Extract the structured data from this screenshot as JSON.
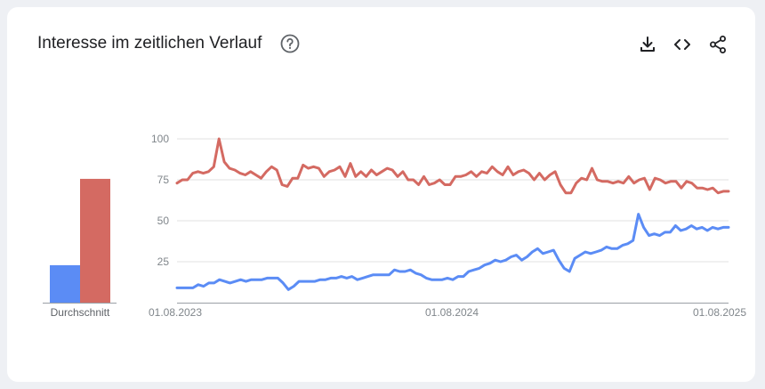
{
  "header": {
    "title": "Interesse im zeitlichen Verlauf",
    "help_icon": "help-circle-icon",
    "actions": [
      {
        "name": "download-icon"
      },
      {
        "name": "embed-code-icon"
      },
      {
        "name": "share-icon"
      }
    ]
  },
  "chart_data": [
    {
      "type": "bar",
      "categories": [
        "Durchschnitt"
      ],
      "series": [
        {
          "values": [
            23
          ],
          "color": "#5b8cf5"
        },
        {
          "values": [
            76
          ],
          "color": "#d46a62"
        }
      ],
      "ylim": [
        0,
        100
      ],
      "xlabel": "Durchschnitt"
    },
    {
      "type": "line",
      "ylim": [
        0,
        100
      ],
      "yticks": [
        25,
        50,
        75,
        100
      ],
      "grid": true,
      "xtick_labels": [
        "01.08.2023",
        "01.08.2024",
        "01.08.2025"
      ],
      "x_start": "2023-08-01",
      "x_end": "2025-08-01",
      "series": [
        {
          "color": "#d46a62",
          "values": [
            73,
            75,
            75,
            79,
            80,
            79,
            80,
            83,
            100,
            86,
            82,
            81,
            79,
            78,
            80,
            78,
            76,
            80,
            83,
            81,
            72,
            71,
            76,
            76,
            84,
            82,
            83,
            82,
            77,
            80,
            81,
            83,
            77,
            85,
            77,
            80,
            77,
            81,
            78,
            80,
            82,
            81,
            77,
            80,
            75,
            75,
            72,
            77,
            72,
            73,
            75,
            72,
            72,
            77,
            77,
            78,
            80,
            77,
            80,
            79,
            83,
            80,
            78,
            83,
            78,
            80,
            81,
            79,
            75,
            79,
            75,
            78,
            80,
            72,
            67,
            67,
            73,
            76,
            75,
            82,
            75,
            74,
            74,
            73,
            74,
            73,
            77,
            73,
            75,
            76,
            69,
            76,
            75,
            73,
            74,
            74,
            70,
            74,
            73,
            70,
            70,
            69,
            70,
            67,
            68,
            68
          ]
        },
        {
          "color": "#5b8cf5",
          "values": [
            9,
            9,
            9,
            9,
            11,
            10,
            12,
            12,
            14,
            13,
            12,
            13,
            14,
            13,
            14,
            14,
            14,
            15,
            15,
            15,
            12,
            8,
            10,
            13,
            13,
            13,
            13,
            14,
            14,
            15,
            15,
            16,
            15,
            16,
            14,
            15,
            16,
            17,
            17,
            17,
            17,
            20,
            19,
            19,
            20,
            18,
            17,
            15,
            14,
            14,
            14,
            15,
            14,
            16,
            16,
            19,
            20,
            21,
            23,
            24,
            26,
            25,
            26,
            28,
            29,
            26,
            28,
            31,
            33,
            30,
            31,
            32,
            26,
            21,
            19,
            27,
            29,
            31,
            30,
            31,
            32,
            34,
            33,
            33,
            35,
            36,
            38,
            54,
            46,
            41,
            42,
            41,
            43,
            43,
            47,
            44,
            45,
            47,
            45,
            46,
            44,
            46,
            45,
            46,
            46
          ]
        }
      ]
    }
  ]
}
